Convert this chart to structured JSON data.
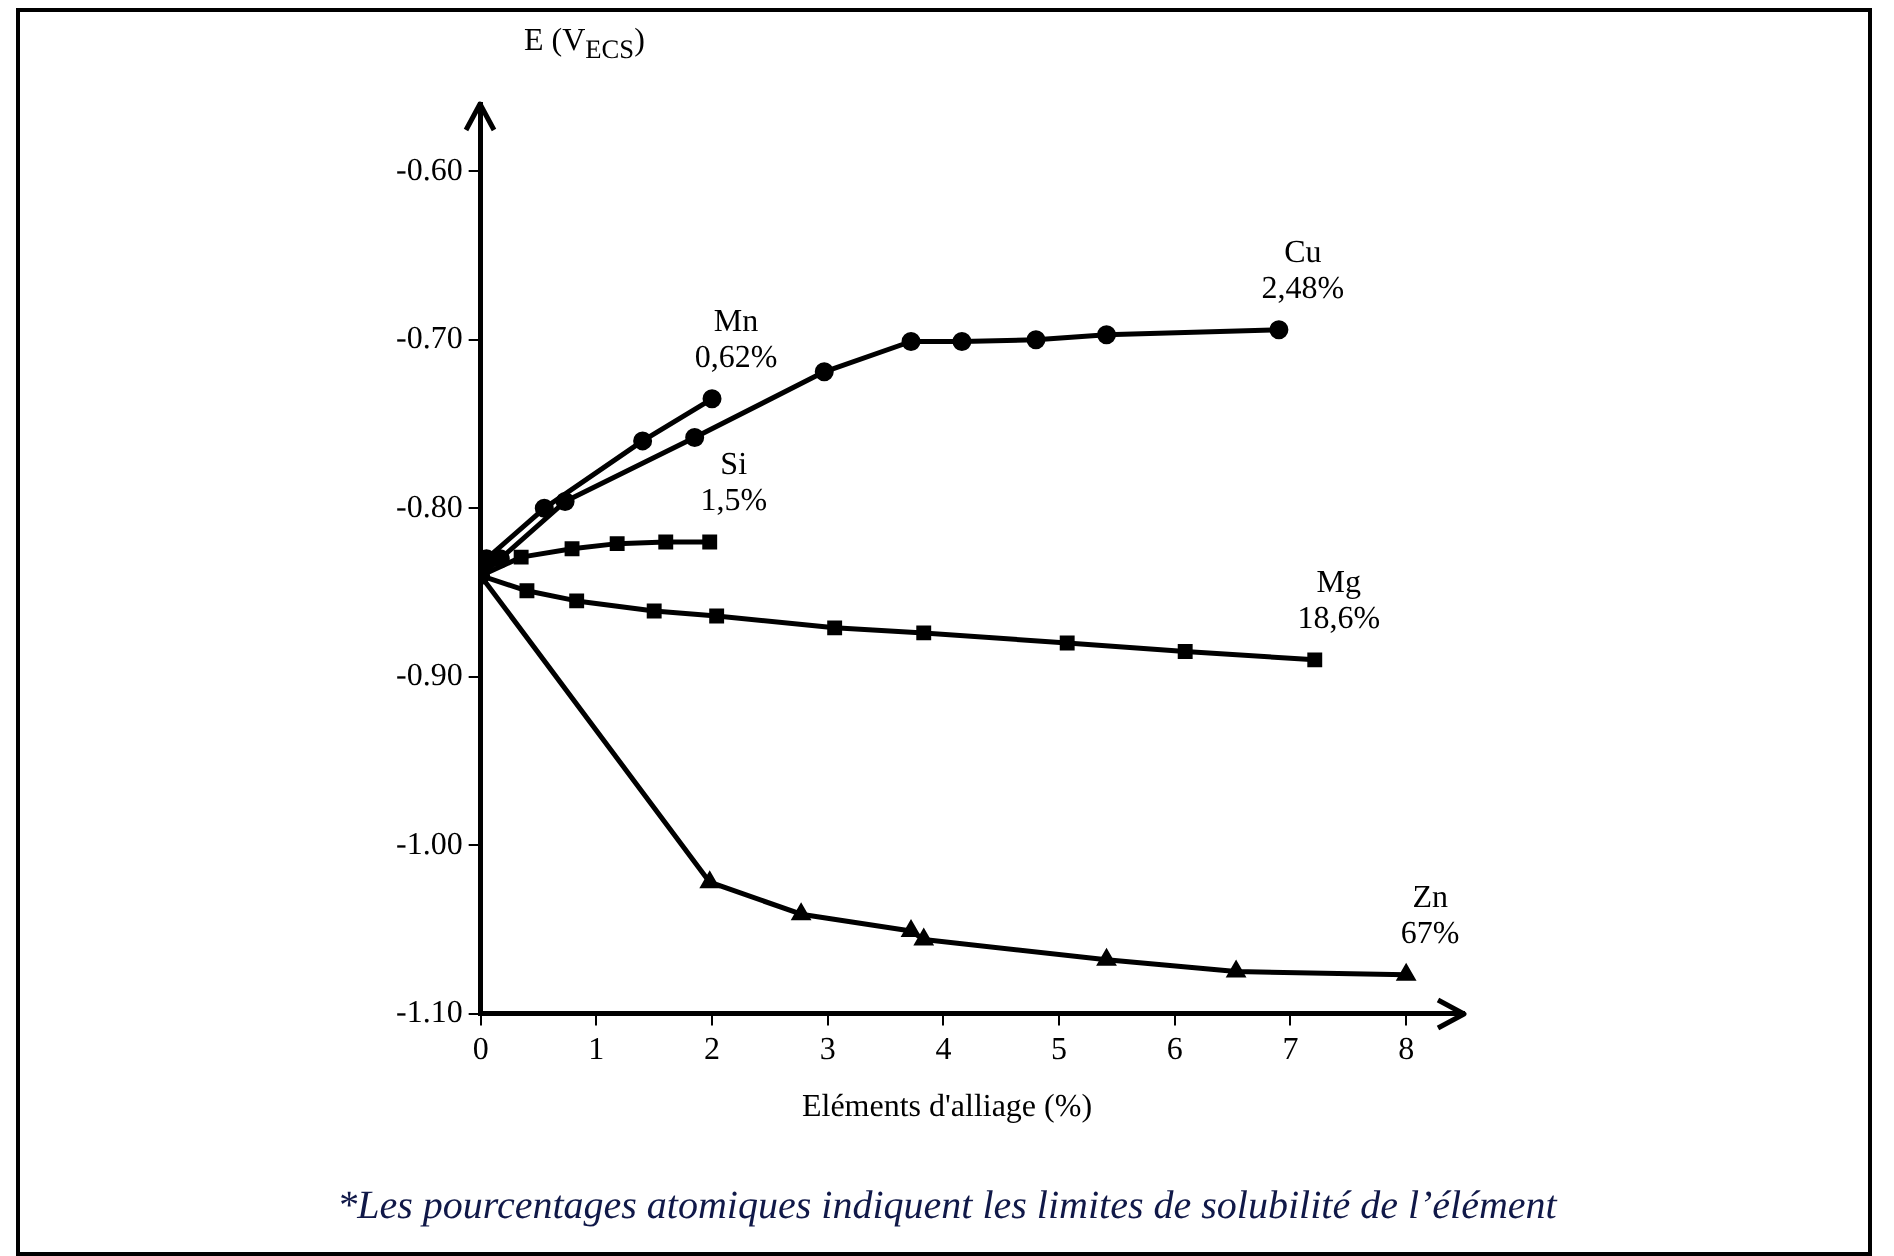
{
  "chart_data": {
    "type": "line",
    "xlabel": "Eléments d'alliage (%)",
    "ylabel": "E (V$_{ECS}$)",
    "xlim": [
      0,
      8.5
    ],
    "xticks": [
      0,
      1,
      2,
      3,
      4,
      5,
      6,
      7,
      8
    ],
    "ylim": [
      -1.1,
      -0.56
    ],
    "yticks": [
      {
        "value": -0.6,
        "label": "-0.60"
      },
      {
        "value": -0.7,
        "label": "-0.70"
      },
      {
        "value": -0.8,
        "label": "-0.80"
      },
      {
        "value": -0.9,
        "label": "-0.90"
      },
      {
        "value": -1.0,
        "label": "-1.00"
      },
      {
        "value": -1.1,
        "label": "-1.10"
      }
    ],
    "grid": false,
    "legend": false,
    "line_style": "solid",
    "series": [
      {
        "name": "Mn",
        "color": "#000000",
        "marker": "circle",
        "x": [
          0,
          0.05,
          0.55,
          1.4,
          2.0
        ],
        "values": [
          -0.84,
          -0.83,
          -0.8,
          -0.76,
          -0.735
        ]
      },
      {
        "name": "Cu",
        "color": "#000000",
        "marker": "circle",
        "x": [
          0,
          0.17,
          0.73,
          1.85,
          2.97,
          3.72,
          4.16,
          4.8,
          5.41,
          6.9
        ],
        "values": [
          -0.84,
          -0.83,
          -0.796,
          -0.758,
          -0.719,
          -0.701,
          -0.701,
          -0.7,
          -0.697,
          -0.694
        ]
      },
      {
        "name": "Si",
        "color": "#000000",
        "marker": "square",
        "x": [
          0,
          0.35,
          0.79,
          1.18,
          1.6,
          1.98
        ],
        "values": [
          -0.84,
          -0.829,
          -0.824,
          -0.821,
          -0.82,
          -0.82
        ]
      },
      {
        "name": "Mg",
        "color": "#000000",
        "marker": "square",
        "x": [
          0,
          0.4,
          0.83,
          1.5,
          2.04,
          3.06,
          3.83,
          5.07,
          6.09,
          7.21
        ],
        "values": [
          -0.84,
          -0.849,
          -0.855,
          -0.861,
          -0.864,
          -0.871,
          -0.874,
          -0.88,
          -0.885,
          -0.89
        ]
      },
      {
        "name": "Zn",
        "color": "#000000",
        "marker": "triangle",
        "x": [
          0,
          1.98,
          2.77,
          3.72,
          3.83,
          5.41,
          6.53,
          8.0
        ],
        "values": [
          -0.84,
          -1.022,
          -1.041,
          -1.051,
          -1.056,
          -1.068,
          -1.075,
          -1.077
        ]
      }
    ],
    "annotations": [
      "0,62%",
      "2,48%",
      "1,5%",
      "18,6%",
      "67%",
      "*Les pourcentages atomiques indiquent les limites de solubilité de l’élément"
    ]
  }
}
